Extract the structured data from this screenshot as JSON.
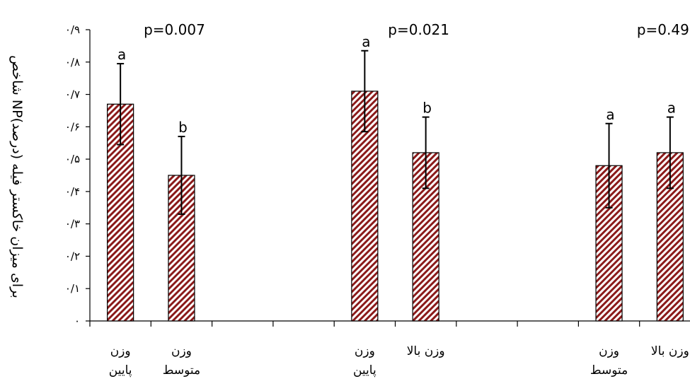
{
  "chart_data": {
    "type": "bar",
    "ylabel": "شاخص NPبرای میزان خاکستر فیله (درصد)",
    "ylim": [
      0,
      0.9
    ],
    "yticks": [
      {
        "value": 0,
        "label": "۰"
      },
      {
        "value": 0.1,
        "label": "۰/۱"
      },
      {
        "value": 0.2,
        "label": "۰/۲"
      },
      {
        "value": 0.3,
        "label": "۰/۳"
      },
      {
        "value": 0.4,
        "label": "۰/۴"
      },
      {
        "value": 0.5,
        "label": "۰/۵"
      },
      {
        "value": 0.6,
        "label": "۰/۶"
      },
      {
        "value": 0.7,
        "label": "۰/۷"
      },
      {
        "value": 0.8,
        "label": "۰/۸"
      },
      {
        "value": 0.9,
        "label": "۰/۹"
      }
    ],
    "grid": false,
    "legend": "none",
    "bar_pattern": "diagonal-hatch",
    "bar_color": "#8b1a1a",
    "slot_count": 10,
    "p_values": [
      {
        "text": "p=0.007",
        "slot": 1
      },
      {
        "text": "p=0.021",
        "slot": 5
      },
      {
        "text": "p=0.49",
        "slot": 9
      }
    ],
    "bars": [
      {
        "slot": 0,
        "category": [
          "وزن",
          "پایین"
        ],
        "value": 0.67,
        "error": 0.125,
        "sig": "a"
      },
      {
        "slot": 1,
        "category": [
          "وزن",
          "متوسط"
        ],
        "value": 0.45,
        "error": 0.12,
        "sig": "b"
      },
      {
        "slot": 4,
        "category": [
          "وزن",
          "پایین"
        ],
        "value": 0.71,
        "error": 0.125,
        "sig": "a"
      },
      {
        "slot": 5,
        "category": [
          "وزن بالا"
        ],
        "value": 0.52,
        "error": 0.11,
        "sig": "b"
      },
      {
        "slot": 8,
        "category": [
          "وزن",
          "متوسط"
        ],
        "value": 0.48,
        "error": 0.13,
        "sig": "a"
      },
      {
        "slot": 9,
        "category": [
          "وزن بالا"
        ],
        "value": 0.52,
        "error": 0.11,
        "sig": "a"
      }
    ]
  }
}
